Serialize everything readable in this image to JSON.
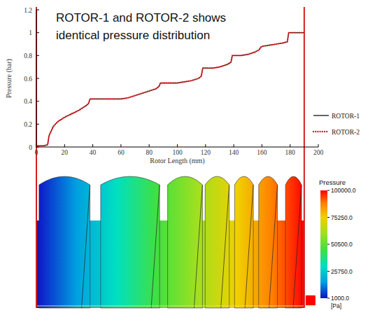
{
  "chart_data": {
    "type": "line",
    "annotation": "ROTOR-1 and ROTOR-2 shows identical pressure distribution",
    "x_label": "Rotor Length (mm)",
    "y_label": "Pressure (bar)",
    "xlim": [
      0,
      200
    ],
    "ylim": [
      0,
      1.2
    ],
    "xticks": [
      0,
      20,
      40,
      60,
      80,
      100,
      120,
      140,
      160,
      180,
      200
    ],
    "yticks": [
      0,
      0.2,
      0.4,
      0.6,
      0.8,
      1,
      1.2
    ],
    "grid": false,
    "legend": "lower right",
    "x": [
      0,
      5,
      8,
      9,
      12,
      15,
      20,
      25,
      30,
      35,
      37,
      38,
      40,
      50,
      60,
      65,
      70,
      75,
      80,
      85,
      87,
      88,
      90,
      100,
      105,
      110,
      115,
      117,
      118,
      125,
      130,
      135,
      138,
      139,
      145,
      150,
      155,
      158,
      159,
      160,
      165,
      170,
      175,
      178,
      179,
      185,
      190
    ],
    "series": [
      {
        "name": "ROTOR-1",
        "color": "#000000",
        "line_style": "solid",
        "values": [
          0.01,
          0.01,
          0.02,
          0.1,
          0.18,
          0.22,
          0.26,
          0.29,
          0.32,
          0.36,
          0.38,
          0.42,
          0.42,
          0.42,
          0.42,
          0.43,
          0.45,
          0.47,
          0.49,
          0.51,
          0.53,
          0.56,
          0.56,
          0.56,
          0.57,
          0.58,
          0.6,
          0.62,
          0.69,
          0.69,
          0.7,
          0.72,
          0.74,
          0.8,
          0.8,
          0.81,
          0.83,
          0.85,
          0.87,
          0.88,
          0.89,
          0.9,
          0.91,
          0.92,
          1.0,
          1.0,
          1.0
        ]
      },
      {
        "name": "ROTOR-2",
        "color": "#e02020",
        "line_style": "dotted",
        "values": [
          0.01,
          0.01,
          0.02,
          0.1,
          0.18,
          0.22,
          0.26,
          0.29,
          0.32,
          0.36,
          0.38,
          0.42,
          0.42,
          0.42,
          0.42,
          0.43,
          0.45,
          0.47,
          0.49,
          0.51,
          0.53,
          0.56,
          0.56,
          0.56,
          0.57,
          0.58,
          0.6,
          0.62,
          0.69,
          0.69,
          0.7,
          0.72,
          0.74,
          0.8,
          0.8,
          0.81,
          0.83,
          0.85,
          0.87,
          0.88,
          0.89,
          0.9,
          0.91,
          0.92,
          1.0,
          1.0,
          1.0
        ]
      }
    ],
    "colorbar": {
      "title": "Pressure",
      "unit": "[Pa]",
      "range": [
        1000,
        100000
      ],
      "ticks": [
        {
          "value": 100000,
          "label": "100000.0"
        },
        {
          "value": 75250,
          "label": "75250.0"
        },
        {
          "value": 50500,
          "label": "50500.0"
        },
        {
          "value": 25750,
          "label": "25750.0"
        },
        {
          "value": 1000,
          "label": "1000.0"
        }
      ]
    }
  }
}
